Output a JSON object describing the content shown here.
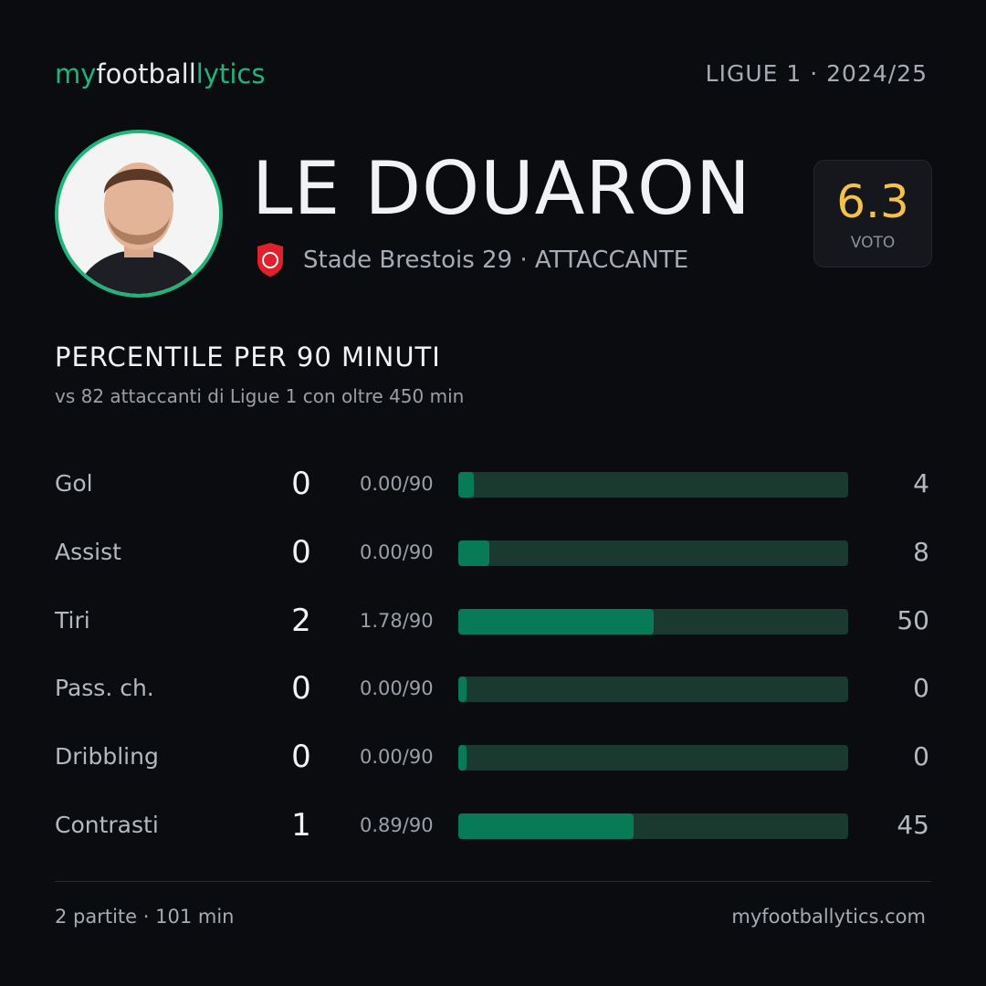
{
  "header": {
    "logo": [
      "my",
      "football",
      "lytics"
    ],
    "league": "LIGUE 1 · 2024/25"
  },
  "player": {
    "name": "LE DOUARON",
    "team_role": "Stade Brestois 29 · ATTACCANTE",
    "rating": "6.3",
    "rating_label": "VOTO"
  },
  "section": {
    "title": "PERCENTILE  PER 90 MINUTI",
    "subtitle": "vs 82 attaccanti  di Ligue 1 con oltre 450 min"
  },
  "rows": [
    {
      "label": "Gol",
      "count": 0,
      "per90": "0.00/90",
      "percentile": 4
    },
    {
      "label": "Assist",
      "count": 0,
      "per90": "0.00/90",
      "percentile": 8
    },
    {
      "label": "Tiri",
      "count": 2,
      "per90": "1.78/90",
      "percentile": 50
    },
    {
      "label": "Pass. ch.",
      "count": 0,
      "per90": "0.00/90",
      "percentile": 0
    },
    {
      "label": "Dribbling",
      "count": 0,
      "per90": "0.00/90",
      "percentile": 0
    },
    {
      "label": "Contrasti",
      "count": 1,
      "per90": "0.89/90",
      "percentile": 45
    }
  ],
  "footer": {
    "summary": "2 partite · 101 min",
    "site": "myfootballytics.com"
  }
}
